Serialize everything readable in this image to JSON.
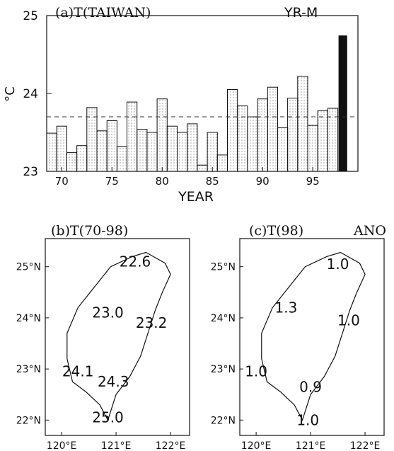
{
  "chart_data": [
    {
      "type": "bar",
      "title": "(a)T(TAIWAN)",
      "annotation": "YR-M",
      "xlabel": "YEAR",
      "ylabel": "°C",
      "ylim": [
        23,
        25
      ],
      "xlim": [
        68.5,
        99.5
      ],
      "x_ticks": [
        70,
        75,
        80,
        85,
        90,
        95
      ],
      "y_ticks": [
        23,
        24,
        25
      ],
      "mean_line": 23.7,
      "highlight_year": 98,
      "series": [
        {
          "x": [
            69,
            70,
            71,
            72,
            73,
            74,
            75,
            76,
            77,
            78,
            79,
            80,
            81,
            82,
            83,
            84,
            85,
            86,
            87,
            88,
            89,
            90,
            91,
            92,
            93,
            94,
            95,
            96,
            97,
            98
          ],
          "values": [
            23.49,
            23.58,
            23.24,
            23.33,
            23.82,
            23.52,
            23.65,
            23.32,
            23.89,
            23.54,
            23.5,
            23.93,
            23.58,
            23.5,
            23.61,
            23.08,
            23.5,
            23.21,
            24.05,
            23.84,
            23.7,
            23.93,
            24.08,
            23.56,
            23.94,
            24.22,
            23.59,
            23.78,
            23.81,
            24.74
          ]
        }
      ],
      "grid": false
    },
    {
      "type": "map",
      "title": "(b)T(70-98)",
      "x_ticks": [
        "120°E",
        "121°E",
        "122°E"
      ],
      "y_ticks": [
        "25°N",
        "24°N",
        "23°N",
        "22°N"
      ],
      "labels": [
        {
          "text": "22.6",
          "lon": 121.35,
          "lat": 25.1
        },
        {
          "text": "23.0",
          "lon": 120.85,
          "lat": 24.1
        },
        {
          "text": "23.2",
          "lon": 121.65,
          "lat": 23.9
        },
        {
          "text": "24.1",
          "lon": 120.3,
          "lat": 22.95
        },
        {
          "text": "24.3",
          "lon": 120.95,
          "lat": 22.75
        },
        {
          "text": "25.0",
          "lon": 120.85,
          "lat": 22.05
        }
      ]
    },
    {
      "type": "map",
      "title": "(c)T(98)",
      "annotation": "ANO",
      "x_ticks": [
        "120°E",
        "121°E",
        "122°E"
      ],
      "y_ticks": [
        "25°N",
        "24°N",
        "23°N",
        "22°N"
      ],
      "labels": [
        {
          "text": "1.0",
          "lon": 121.5,
          "lat": 25.05
        },
        {
          "text": "1.3",
          "lon": 120.55,
          "lat": 24.2
        },
        {
          "text": "1.0",
          "lon": 121.7,
          "lat": 23.95
        },
        {
          "text": "1.0",
          "lon": 120.0,
          "lat": 22.95
        },
        {
          "text": "0.9",
          "lon": 121.0,
          "lat": 22.65
        },
        {
          "text": "1.0",
          "lon": 120.95,
          "lat": 22.0
        }
      ]
    }
  ],
  "colors": {
    "bar_fill": "#ffffff",
    "bar_dots": "#444444",
    "highlight_bar": "#111111",
    "line": "#111111"
  }
}
